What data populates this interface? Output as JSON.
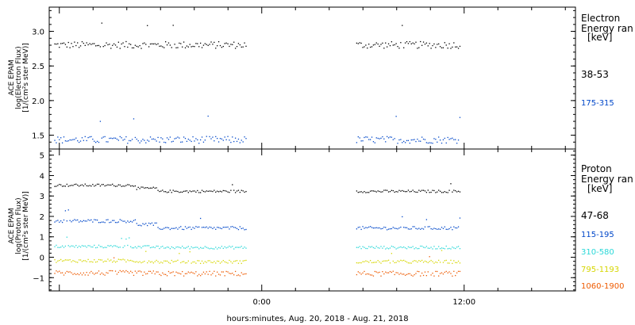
{
  "x_label": "hours:minutes, Aug. 20, 2018 - Aug. 21, 2018",
  "chart_data": [
    {
      "type": "scatter",
      "panel": "electron",
      "ylabel": [
        "ACE EPAM",
        "log(Electron Flux)",
        "[1/(cm²s ster MeV)]"
      ],
      "y_ticks": [
        "3.0",
        "2.5",
        "2.0",
        "1.5"
      ],
      "y_tick_values": [
        3.0,
        2.5,
        2.0,
        1.5
      ],
      "ylim": [
        1.3,
        3.35
      ],
      "x_ticks": [
        "0:00",
        "12:00"
      ],
      "x_tick_values": [
        0,
        12
      ],
      "xlim": [
        -12.6,
        18.6
      ],
      "legend": {
        "title": [
          "Electron",
          "Energy ran",
          "[keV]"
        ]
      },
      "data_gap": [
        -0.8,
        5.5
      ],
      "series": [
        {
          "name": "38-53",
          "color": "#000000",
          "level": 2.81,
          "noise": 0.05,
          "segments": [
            [
              -12.3,
              -0.9
            ],
            [
              5.6,
              11.8
            ]
          ]
        },
        {
          "name": "175-315",
          "color": "#0047c9",
          "level": 1.44,
          "noise": 0.05,
          "segments": [
            [
              -12.3,
              -0.9
            ],
            [
              5.6,
              11.8
            ]
          ]
        }
      ]
    },
    {
      "type": "scatter",
      "panel": "proton",
      "ylabel": [
        "ACE EPAM",
        "log(Proton Flux)",
        "[1/(cm²s ster MeV)]"
      ],
      "y_ticks": [
        "5",
        "4",
        "3",
        "2",
        "1",
        "0",
        "−1"
      ],
      "y_tick_values": [
        5,
        4,
        3,
        2,
        1,
        0,
        -1
      ],
      "ylim": [
        -1.65,
        5.3
      ],
      "x_ticks": [
        "0:00",
        "12:00"
      ],
      "x_tick_values": [
        0,
        12
      ],
      "xlim": [
        -12.6,
        18.6
      ],
      "legend": {
        "title": [
          "Proton",
          "Energy ran",
          "[keV]"
        ]
      },
      "data_gap": [
        -0.8,
        5.5
      ],
      "series": [
        {
          "name": "47-68",
          "color": "#000000",
          "level": 3.25,
          "early_level": 3.55,
          "noise": 0.06,
          "segments": [
            [
              -12.3,
              -0.9
            ],
            [
              5.6,
              11.8
            ]
          ]
        },
        {
          "name": "115-195",
          "color": "#0047c9",
          "level": 1.45,
          "early_level": 1.8,
          "noise": 0.08,
          "segments": [
            [
              -12.3,
              -0.9
            ],
            [
              5.6,
              11.8
            ]
          ]
        },
        {
          "name": "310-580",
          "color": "#2ad8d8",
          "level": 0.5,
          "early_level": 0.55,
          "noise": 0.07,
          "segments": [
            [
              -12.3,
              -0.9
            ],
            [
              5.6,
              11.8
            ]
          ]
        },
        {
          "name": "795-1193",
          "color": "#d6d600",
          "level": -0.2,
          "early_level": -0.15,
          "noise": 0.08,
          "segments": [
            [
              -12.3,
              -0.9
            ],
            [
              5.6,
              11.8
            ]
          ]
        },
        {
          "name": "1060-1900",
          "color": "#ee5a00",
          "level": -0.78,
          "early_level": -0.75,
          "noise": 0.12,
          "segments": [
            [
              -12.3,
              -0.9
            ],
            [
              5.6,
              11.8
            ]
          ]
        }
      ]
    }
  ]
}
